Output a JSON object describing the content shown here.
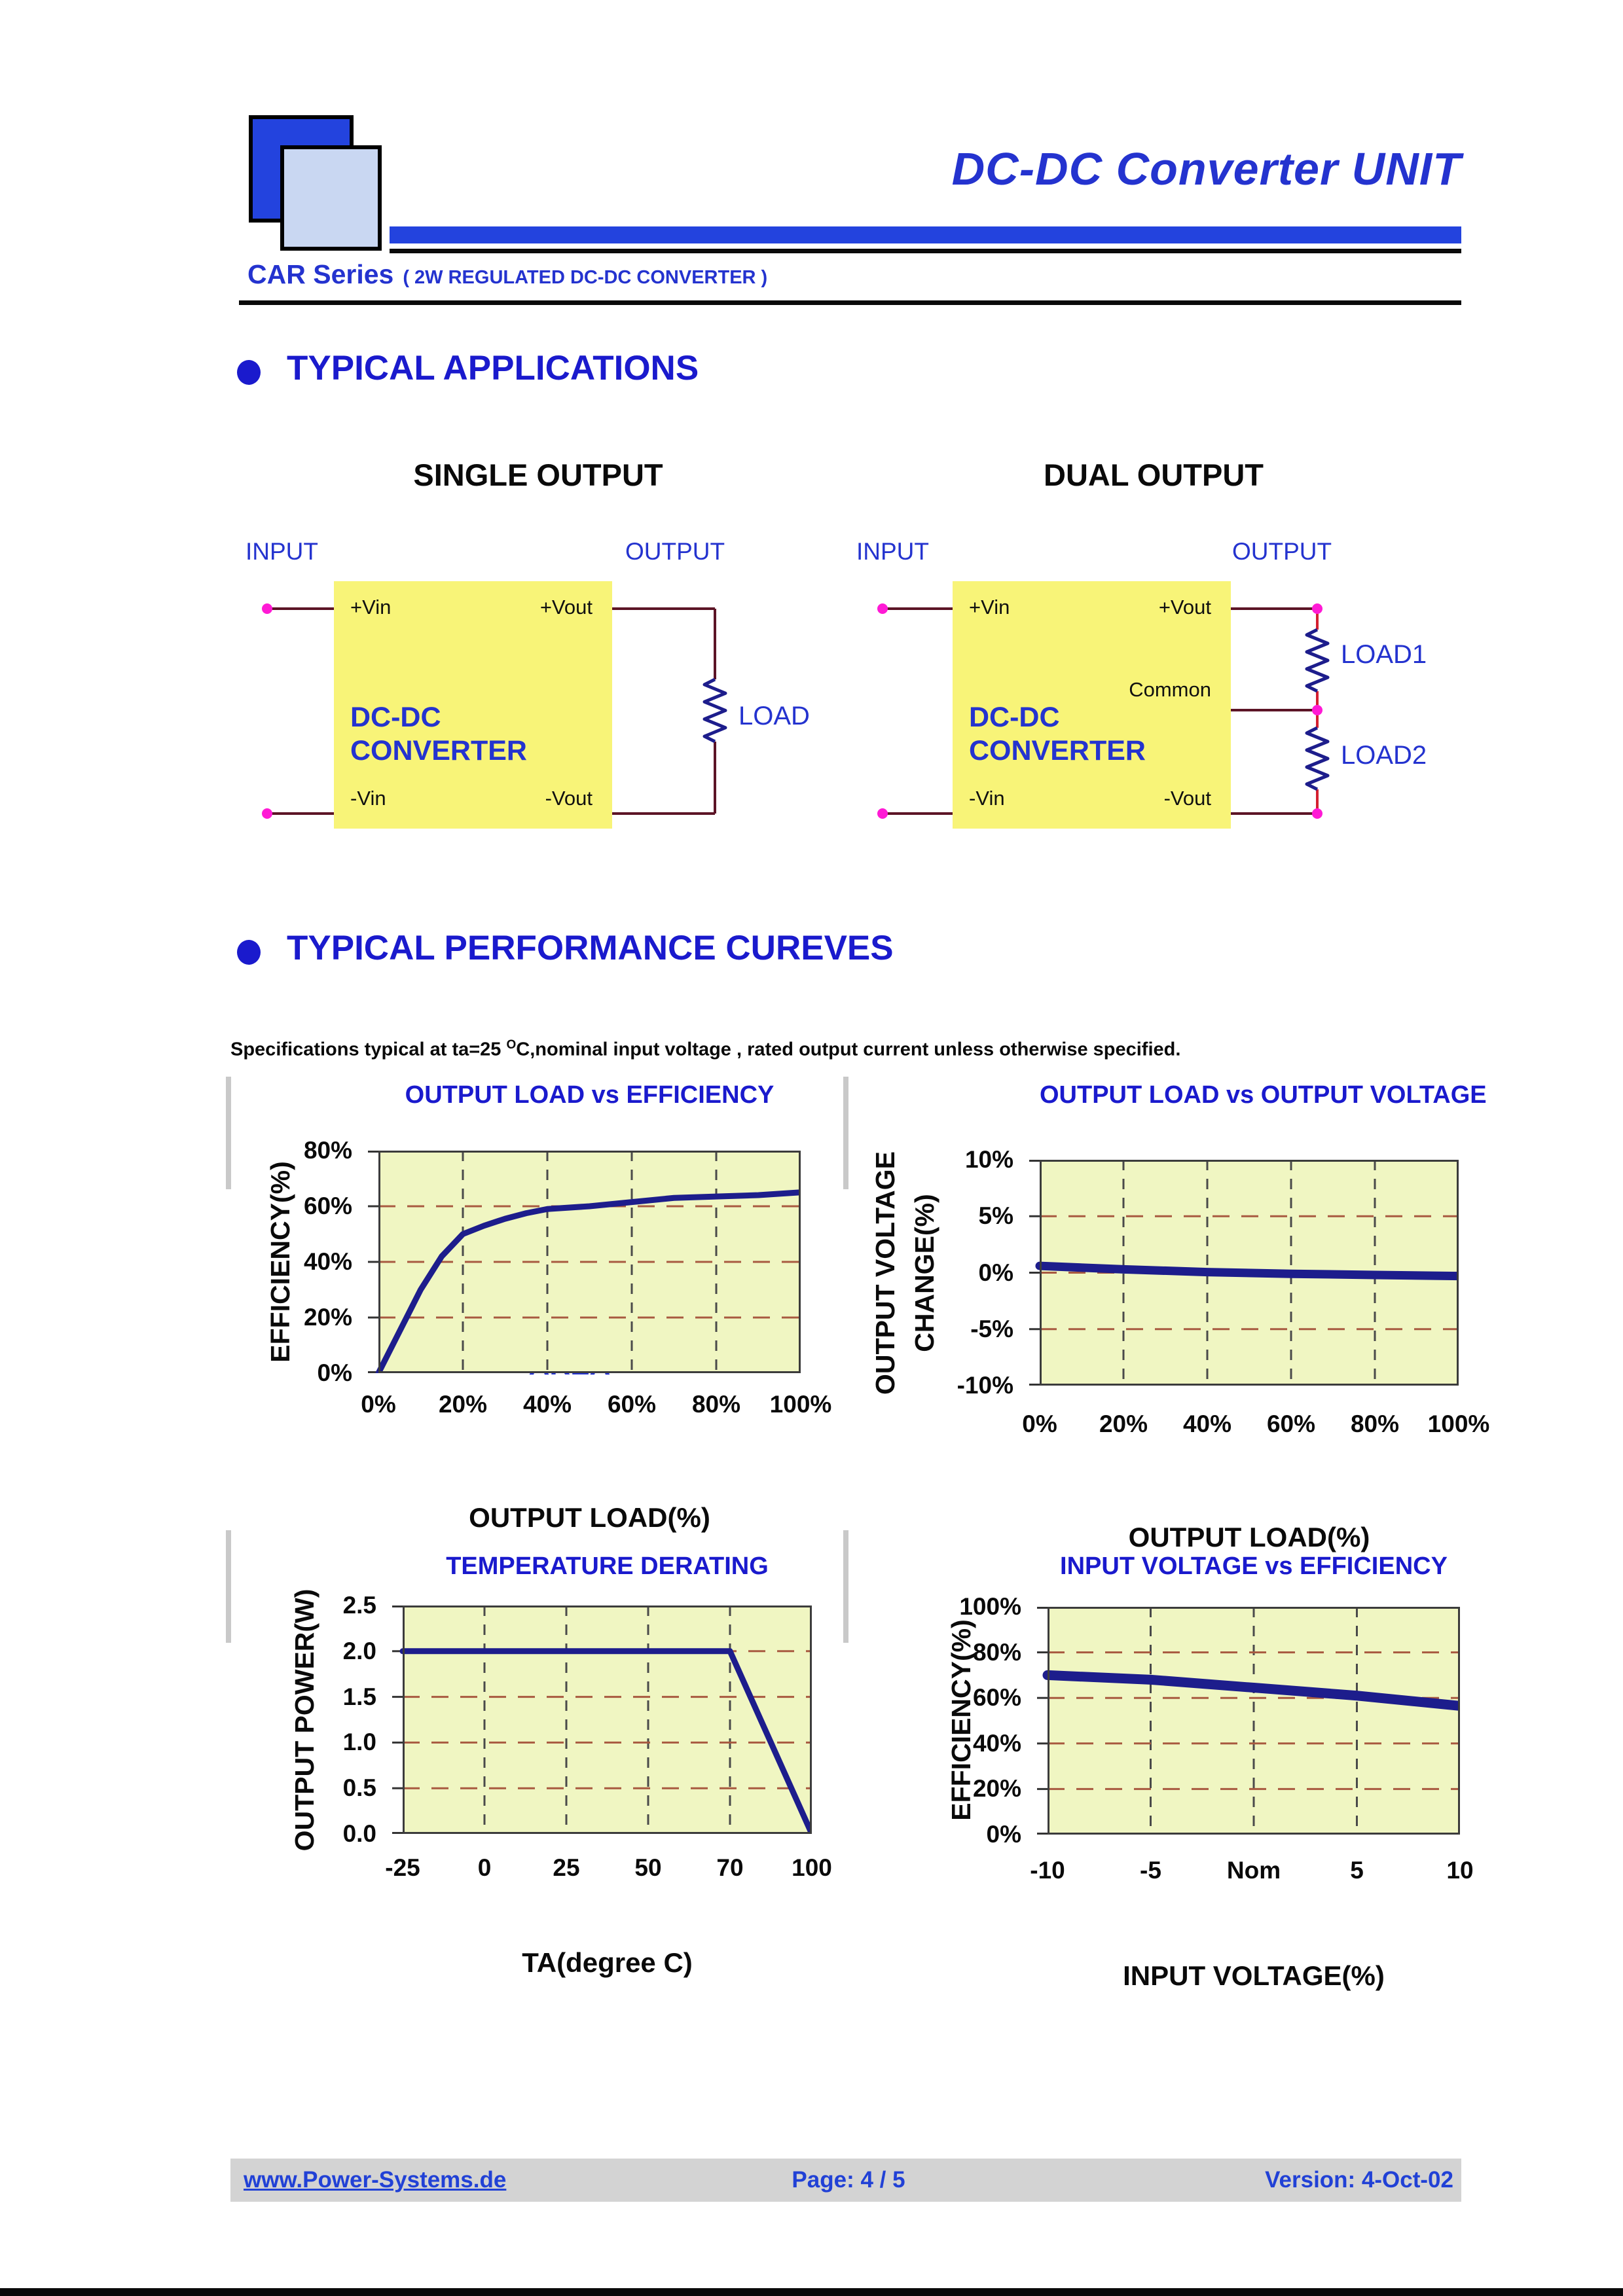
{
  "colors": {
    "accent": "#2433cf",
    "heading_blue": "#1a1acd",
    "bar_blue": "#2343de",
    "logo_dark": "#2343de",
    "logo_light": "#c9d7f2",
    "box_yellow": "#f8f478",
    "chart_bg": "#f0f6c2",
    "grid_h": "#a85a40",
    "grid_v": "#4a4a4a",
    "frame": "#3c3c3c",
    "navy_line": "#1d1d8c",
    "wire": "#5c1426",
    "chain_red": "#d42030",
    "dot_magenta": "#ff1ad5",
    "footer_bar": "#d3d3d3",
    "footer_text": "#2141d6"
  },
  "header": {
    "title": "DC-DC Converter UNIT",
    "series_name": "CAR Series",
    "series_desc": "( 2W REGULATED DC-DC CONVERTER )"
  },
  "sections": {
    "applications_title": "TYPICAL APPLICATIONS",
    "performance_title": "TYPICAL PERFORMANCE CUREVES",
    "spec_prefix": "Specifications typical at ta=25 ",
    "spec_sup": "O",
    "spec_suffix": "C,nominal input voltage , rated output current unless otherwise specified."
  },
  "diagrams": {
    "single": {
      "heading": "SINGLE OUTPUT",
      "input_label": "INPUT",
      "output_label": "OUTPUT",
      "pins": {
        "vin_pos": "+Vin",
        "vout_pos": "+Vout",
        "vin_neg": "-Vin",
        "vout_neg": "-Vout"
      },
      "box_line1": "DC-DC",
      "box_line2": "CONVERTER",
      "load": "LOAD"
    },
    "dual": {
      "heading": "DUAL OUTPUT",
      "input_label": "INPUT",
      "output_label": "OUTPUT",
      "pins": {
        "vin_pos": "+Vin",
        "vout_pos": "+Vout",
        "vin_neg": "-Vin",
        "vout_neg": "-Vout"
      },
      "common": "Common",
      "box_line1": "DC-DC",
      "box_line2": "CONVERTER",
      "load1": "LOAD1",
      "load2": "LOAD2"
    }
  },
  "chart_data": [
    {
      "type": "line",
      "title": "OUTPUT LOAD vs EFFICIENCY",
      "xlabel": "OUTPUT LOAD(%)",
      "ylabel": [
        "EFFICIENCY(%)"
      ],
      "x_ticks": [
        "0%",
        "20%",
        "40%",
        "60%",
        "80%",
        "100%"
      ],
      "y_ticks": {
        "labels": [
          "80%",
          "60%",
          "40%",
          "20%",
          "0%"
        ],
        "values": [
          80,
          60,
          40,
          20,
          0
        ]
      },
      "y_range": [
        0,
        80
      ],
      "annotation": [
        "SAFE",
        "OPERATING",
        "AREA"
      ],
      "series": [
        {
          "name": "efficiency",
          "points": [
            [
              0,
              0
            ],
            [
              0.05,
              15
            ],
            [
              0.1,
              30
            ],
            [
              0.15,
              42
            ],
            [
              0.2,
              50
            ],
            [
              0.25,
              53
            ],
            [
              0.3,
              55.5
            ],
            [
              0.35,
              57.5
            ],
            [
              0.4,
              59
            ],
            [
              0.5,
              60
            ],
            [
              0.6,
              61.5
            ],
            [
              0.7,
              63
            ],
            [
              0.8,
              63.5
            ],
            [
              0.9,
              64
            ],
            [
              1,
              65
            ]
          ]
        }
      ]
    },
    {
      "type": "line",
      "title": "OUTPUT LOAD vs OUTPUT VOLTAGE",
      "xlabel": "OUTPUT LOAD(%)",
      "ylabel": [
        "OUTPUT VOLTAGE",
        "CHANGE(%)"
      ],
      "x_ticks": [
        "0%",
        "20%",
        "40%",
        "60%",
        "80%",
        "100%"
      ],
      "y_ticks": {
        "labels": [
          "10%",
          "5%",
          "0%",
          "-5%",
          "-10%"
        ],
        "values": [
          10,
          5,
          0,
          -5,
          -10
        ]
      },
      "y_range": [
        -10,
        10
      ],
      "annotation": [],
      "series": [
        {
          "name": "output-voltage-change",
          "points": [
            [
              0,
              0.6
            ],
            [
              0.2,
              0.3
            ],
            [
              0.4,
              0.05
            ],
            [
              0.6,
              -0.1
            ],
            [
              0.8,
              -0.2
            ],
            [
              1,
              -0.3
            ]
          ]
        }
      ]
    },
    {
      "type": "line",
      "title": "TEMPERATURE DERATING",
      "xlabel": "TA(degree C)",
      "ylabel": [
        "OUTPUT POWER(W)"
      ],
      "x_ticks": [
        "-25",
        "0",
        "25",
        "50",
        "70",
        "100"
      ],
      "y_ticks": {
        "labels": [
          "2.5",
          "2.0",
          "1.5",
          "1.0",
          "0.5",
          "0.0"
        ],
        "values": [
          2.5,
          2.0,
          1.5,
          1.0,
          0.5,
          0.0
        ]
      },
      "y_range": [
        0,
        2.5
      ],
      "annotation": [],
      "series": [
        {
          "name": "output-power",
          "points": [
            [
              0,
              2.0
            ],
            [
              0.8,
              2.0
            ],
            [
              1,
              0.0
            ]
          ]
        }
      ]
    },
    {
      "type": "line",
      "title": "INPUT VOLTAGE vs EFFICIENCY",
      "xlabel": "INPUT VOLTAGE(%)",
      "ylabel": [
        "EFFICIENCY(%)"
      ],
      "x_ticks": [
        "-10",
        "-5",
        "Nom",
        "5",
        "10"
      ],
      "y_ticks": {
        "labels": [
          "100%",
          "80%",
          "60%",
          "40%",
          "20%",
          "0%"
        ],
        "values": [
          100,
          80,
          60,
          40,
          20,
          0
        ]
      },
      "y_range": [
        0,
        100
      ],
      "annotation": [],
      "series": [
        {
          "name": "efficiency",
          "points": [
            [
              0,
              70
            ],
            [
              0.25,
              68
            ],
            [
              0.5,
              64.5
            ],
            [
              0.75,
              61
            ],
            [
              1,
              56.5
            ]
          ]
        }
      ]
    }
  ],
  "footer": {
    "website": "www.Power-Systems.de",
    "page": "Page: 4 / 5",
    "version": "Version: 4-Oct-02"
  }
}
